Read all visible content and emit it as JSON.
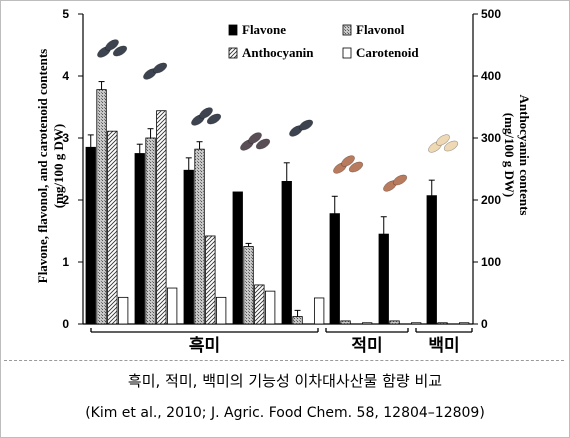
{
  "chart_data": {
    "type": "bar",
    "left_axis": {
      "label_line1": "Flavone, flavonol, and carotenoid contents",
      "label_line2": "(mg/100 g DW)",
      "ticks": [
        "0",
        "1",
        "2",
        "3",
        "4",
        "5"
      ],
      "range": [
        0,
        5
      ]
    },
    "right_axis": {
      "label_line1": "Anthocyanin contents",
      "label_line2": "(mg/100 g DW)",
      "ticks": [
        "0",
        "100",
        "200",
        "300",
        "400",
        "500"
      ],
      "range": [
        0,
        500
      ]
    },
    "legend": [
      "Flavone",
      "Flavonol",
      "Anthocyanin",
      "Carotenoid"
    ],
    "groups": [
      {
        "label": "흑미",
        "span": [
          0,
          4
        ]
      },
      {
        "label": "적미",
        "span": [
          5,
          6
        ]
      },
      {
        "label": "백미",
        "span": [
          7,
          7
        ]
      }
    ],
    "samples": [
      {
        "flavone": 2.85,
        "flavone_err": 0.2,
        "flavonol": 3.78,
        "flavonol_err": 0.13,
        "anthocyanin": 311,
        "carotenoid": 0.43
      },
      {
        "flavone": 2.75,
        "flavone_err": 0.15,
        "flavonol": 3.0,
        "flavonol_err": 0.15,
        "anthocyanin": 344,
        "carotenoid": 0.58
      },
      {
        "flavone": 2.48,
        "flavone_err": 0.2,
        "flavonol": 2.82,
        "flavonol_err": 0.12,
        "anthocyanin": 142,
        "carotenoid": 0.43
      },
      {
        "flavone": 2.13,
        "flavone_err": 0.0,
        "flavonol": 1.25,
        "flavonol_err": 0.05,
        "anthocyanin": 63,
        "carotenoid": 0.53
      },
      {
        "flavone": 2.3,
        "flavone_err": 0.3,
        "flavonol": 0.12,
        "flavonol_err": 0.1,
        "anthocyanin": 0,
        "carotenoid": 0.42
      },
      {
        "flavone": 1.78,
        "flavone_err": 0.28,
        "flavonol": 0.05,
        "flavonol_err": 0,
        "anthocyanin": 0,
        "carotenoid": 0.02
      },
      {
        "flavone": 1.45,
        "flavone_err": 0.28,
        "flavonol": 0.05,
        "flavonol_err": 0,
        "anthocyanin": 0,
        "carotenoid": 0.02
      },
      {
        "flavone": 2.07,
        "flavone_err": 0.25,
        "flavonol": 0.02,
        "flavonol_err": 0,
        "anthocyanin": 0,
        "carotenoid": 0.02
      }
    ],
    "grain_colors": {
      "black": "#3d4450",
      "purple_brown": "#5a4e56",
      "red": "#b97b5e",
      "white": "#eed9b4"
    }
  },
  "caption": {
    "line1": "흑미, 적미, 백미의 기능성 이차대사산물 함량 비교",
    "line2": "(Kim et al., 2010; J. Agric. Food Chem. 58, 12804–12809)"
  }
}
